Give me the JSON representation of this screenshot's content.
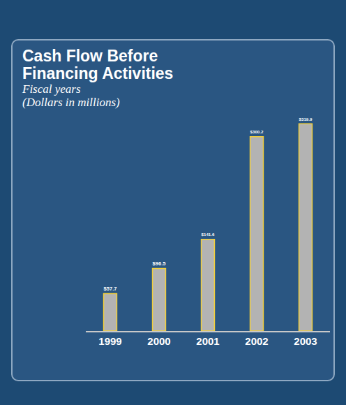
{
  "chart_data": {
    "type": "bar",
    "title": "Cash Flow Before Financing Activities",
    "subtitle": [
      "Fiscal years",
      "(Dollars in millions)"
    ],
    "categories": [
      "1999",
      "2000",
      "2001",
      "2002",
      "2003"
    ],
    "values": [
      57.7,
      96.5,
      141.6,
      300.2,
      319.9
    ],
    "value_labels": [
      "$57.7",
      "$96.5",
      "$141.6",
      "$300.2",
      "$319.9"
    ],
    "data_labels": true,
    "color": "#b3b3b3",
    "ylim": [
      0,
      330
    ],
    "tick_labels": "x",
    "grid": false
  }
}
